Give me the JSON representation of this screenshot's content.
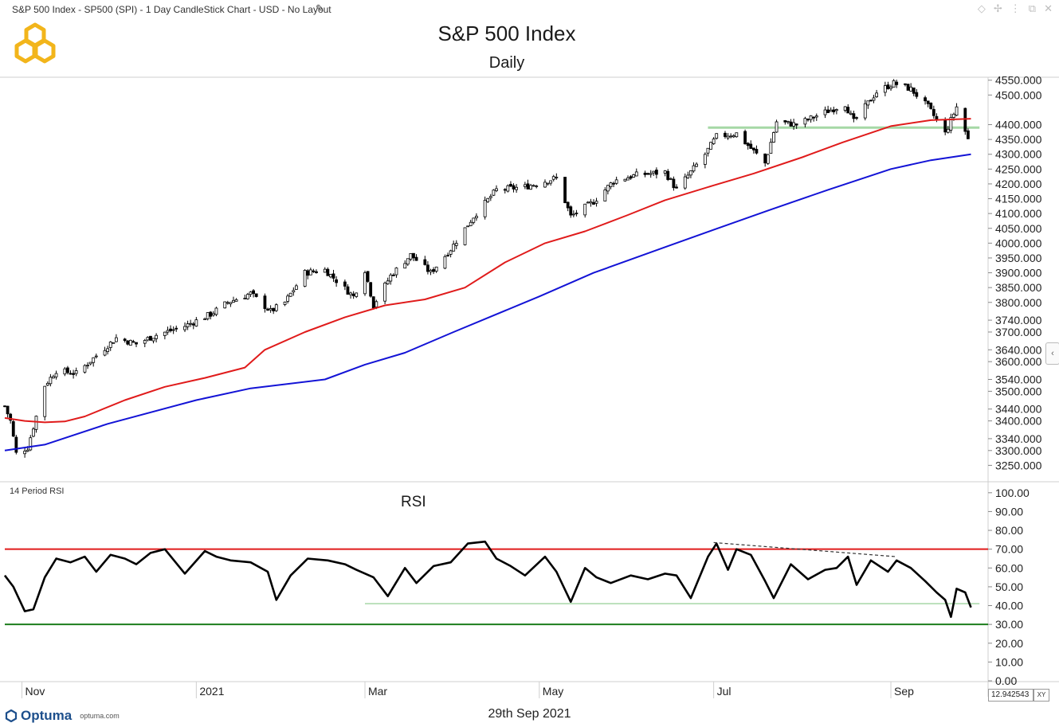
{
  "header": {
    "chart_description": "S&P 500 Index  - SP500 (SPI) - 1 Day CandleStick Chart - USD - No Layout",
    "edit_icon": "pencil-icon",
    "window_icons": [
      "diamond-icon",
      "pin-icon",
      "tune-icon",
      "restore-icon",
      "close-icon"
    ]
  },
  "footer": {
    "brand": "Optuma",
    "site": "optuma.com",
    "date": "29th Sep 2021",
    "xy_value": "12.942543",
    "xy_button": "XY"
  },
  "colors": {
    "ma_fast": "#e01b1b",
    "ma_slow": "#1313d6",
    "support": "#a6d8a6",
    "overbought": "#e01b1b",
    "oversold": "#1c7d1c",
    "logo": "#f2b51b"
  },
  "chart_data": [
    {
      "type": "candlestick",
      "title": "S&P 500 Index",
      "subtitle": "Daily",
      "y_tick_labels": [
        "4550.000",
        "4500.000",
        "4400.000",
        "4350.000",
        "4300.000",
        "4250.000",
        "4200.000",
        "4150.000",
        "4100.000",
        "4050.000",
        "4000.000",
        "3950.000",
        "3900.000",
        "3850.000",
        "3800.000",
        "3740.000",
        "3700.000",
        "3640.000",
        "3600.000",
        "3540.000",
        "3500.000",
        "3440.000",
        "3400.000",
        "3340.000",
        "3300.000",
        "3250.000"
      ],
      "ylim": [
        3200,
        4560
      ],
      "x_tick_labels": [
        "Nov",
        "2021",
        "Mar",
        "May",
        "Jul",
        "Sep"
      ],
      "x_tick_dates": [
        "2020-11-01",
        "2021-01-01",
        "2021-03-01",
        "2021-05-01",
        "2021-07-01",
        "2021-09-01"
      ],
      "x_range": [
        "2020-10-26",
        "2021-10-05"
      ],
      "series": [
        {
          "role": "moving-average-fast",
          "color": "#e01b1b",
          "x": [
            "2020-10-26",
            "2020-11-02",
            "2020-11-09",
            "2020-11-16",
            "2020-11-23",
            "2020-12-07",
            "2020-12-21",
            "2021-01-04",
            "2021-01-18",
            "2021-01-25",
            "2021-02-08",
            "2021-02-22",
            "2021-03-08",
            "2021-03-22",
            "2021-04-05",
            "2021-04-19",
            "2021-05-03",
            "2021-05-17",
            "2021-06-01",
            "2021-06-14",
            "2021-07-01",
            "2021-07-15",
            "2021-08-01",
            "2021-08-15",
            "2021-09-01",
            "2021-09-15",
            "2021-09-29"
          ],
          "values": [
            3410,
            3400,
            3395,
            3398,
            3415,
            3470,
            3515,
            3545,
            3580,
            3640,
            3700,
            3750,
            3790,
            3810,
            3850,
            3935,
            4000,
            4040,
            4095,
            4145,
            4195,
            4235,
            4290,
            4340,
            4395,
            4415,
            4420
          ]
        },
        {
          "role": "moving-average-slow",
          "color": "#1313d6",
          "x": [
            "2020-10-26",
            "2020-11-09",
            "2020-12-01",
            "2021-01-01",
            "2021-01-20",
            "2021-02-15",
            "2021-03-01",
            "2021-03-15",
            "2021-04-01",
            "2021-05-01",
            "2021-05-20",
            "2021-06-15",
            "2021-07-01",
            "2021-07-20",
            "2021-08-10",
            "2021-09-01",
            "2021-09-15",
            "2021-09-29"
          ],
          "values": [
            3300,
            3320,
            3390,
            3470,
            3510,
            3540,
            3590,
            3630,
            3700,
            3820,
            3900,
            3990,
            4045,
            4110,
            4180,
            4250,
            4280,
            4300
          ]
        },
        {
          "role": "support-line",
          "color": "#a6d8a6",
          "x": [
            "2021-06-29",
            "2021-10-02"
          ],
          "values": [
            4390,
            4390
          ]
        }
      ],
      "ohlc_path": {
        "x": [
          "2020-10-26",
          "2020-10-28",
          "2020-10-30",
          "2020-11-03",
          "2020-11-09",
          "2020-11-13",
          "2020-11-20",
          "2020-11-27",
          "2020-12-04",
          "2020-12-11",
          "2020-12-18",
          "2020-12-28",
          "2021-01-06",
          "2021-01-12",
          "2021-01-20",
          "2021-01-27",
          "2021-02-01",
          "2021-02-08",
          "2021-02-15",
          "2021-02-25",
          "2021-03-01",
          "2021-03-04",
          "2021-03-10",
          "2021-03-17",
          "2021-03-24",
          "2021-03-31",
          "2021-04-08",
          "2021-04-16",
          "2021-04-26",
          "2021-05-07",
          "2021-05-12",
          "2021-05-20",
          "2021-05-27",
          "2021-06-04",
          "2021-06-14",
          "2021-06-18",
          "2021-06-28",
          "2021-07-02",
          "2021-07-09",
          "2021-07-19",
          "2021-07-23",
          "2021-07-30",
          "2021-08-06",
          "2021-08-16",
          "2021-08-19",
          "2021-08-27",
          "2021-09-02",
          "2021-09-08",
          "2021-09-14",
          "2021-09-20",
          "2021-09-24",
          "2021-09-28"
        ],
        "values": [
          3450,
          3400,
          3290,
          3310,
          3520,
          3570,
          3560,
          3620,
          3680,
          3660,
          3690,
          3720,
          3760,
          3800,
          3830,
          3770,
          3800,
          3900,
          3910,
          3820,
          3910,
          3790,
          3890,
          3960,
          3900,
          3980,
          4090,
          4180,
          4190,
          4220,
          4090,
          4140,
          4210,
          4230,
          4240,
          4180,
          4300,
          4360,
          4370,
          4270,
          4410,
          4400,
          4430,
          4470,
          4410,
          4510,
          4540,
          4520,
          4460,
          4370,
          4460,
          4350
        ]
      }
    },
    {
      "type": "line",
      "title": "RSI",
      "label": "14 Period RSI",
      "ylim": [
        0,
        105
      ],
      "y_tick_labels": [
        "100.00",
        "90.00",
        "80.00",
        "70.00",
        "60.00",
        "50.00",
        "40.00",
        "30.00",
        "20.00",
        "10.00",
        "0.00"
      ],
      "x_range": [
        "2020-10-26",
        "2021-10-05"
      ],
      "levels": [
        {
          "role": "overbought",
          "value": 70,
          "color": "#e01b1b"
        },
        {
          "role": "oversold",
          "value": 30,
          "color": "#1c7d1c"
        },
        {
          "role": "support",
          "value": 41,
          "color": "#a6d8a6",
          "x": [
            "2021-03-01",
            "2021-10-02"
          ]
        }
      ],
      "trendline": {
        "x": [
          "2021-07-01",
          "2021-09-03"
        ],
        "values": [
          73.5,
          66
        ]
      },
      "series": [
        {
          "x": [
            "2020-10-26",
            "2020-10-29",
            "2020-11-02",
            "2020-11-05",
            "2020-11-09",
            "2020-11-13",
            "2020-11-18",
            "2020-11-23",
            "2020-11-27",
            "2020-12-02",
            "2020-12-07",
            "2020-12-11",
            "2020-12-16",
            "2020-12-21",
            "2020-12-28",
            "2021-01-04",
            "2021-01-08",
            "2021-01-13",
            "2021-01-20",
            "2021-01-26",
            "2021-01-29",
            "2021-02-03",
            "2021-02-09",
            "2021-02-16",
            "2021-02-22",
            "2021-02-26",
            "2021-03-04",
            "2021-03-09",
            "2021-03-15",
            "2021-03-19",
            "2021-03-25",
            "2021-03-31",
            "2021-04-06",
            "2021-04-12",
            "2021-04-16",
            "2021-04-21",
            "2021-04-26",
            "2021-05-03",
            "2021-05-07",
            "2021-05-12",
            "2021-05-17",
            "2021-05-21",
            "2021-05-26",
            "2021-06-02",
            "2021-06-08",
            "2021-06-14",
            "2021-06-18",
            "2021-06-23",
            "2021-06-29",
            "2021-07-02",
            "2021-07-06",
            "2021-07-09",
            "2021-07-14",
            "2021-07-19",
            "2021-07-22",
            "2021-07-28",
            "2021-08-03",
            "2021-08-09",
            "2021-08-13",
            "2021-08-17",
            "2021-08-20",
            "2021-08-25",
            "2021-08-31",
            "2021-09-03",
            "2021-09-08",
            "2021-09-13",
            "2021-09-17",
            "2021-09-20",
            "2021-09-22",
            "2021-09-24",
            "2021-09-27",
            "2021-09-29"
          ],
          "values": [
            56,
            50,
            37,
            38,
            55,
            65,
            63,
            66,
            58,
            67,
            65,
            62,
            68,
            70,
            57,
            69,
            66,
            64,
            63,
            58,
            43,
            56,
            65,
            64,
            62,
            59,
            55,
            45,
            60,
            52,
            61,
            63,
            73,
            74,
            65,
            61,
            56,
            66,
            58,
            42,
            60,
            55,
            52,
            56,
            54,
            57,
            56,
            44,
            66,
            73,
            59,
            70,
            67,
            53,
            44,
            62,
            54,
            59,
            60,
            66,
            51,
            64,
            58,
            64,
            60,
            53,
            47,
            43,
            34,
            49,
            47,
            39
          ]
        }
      ]
    }
  ]
}
